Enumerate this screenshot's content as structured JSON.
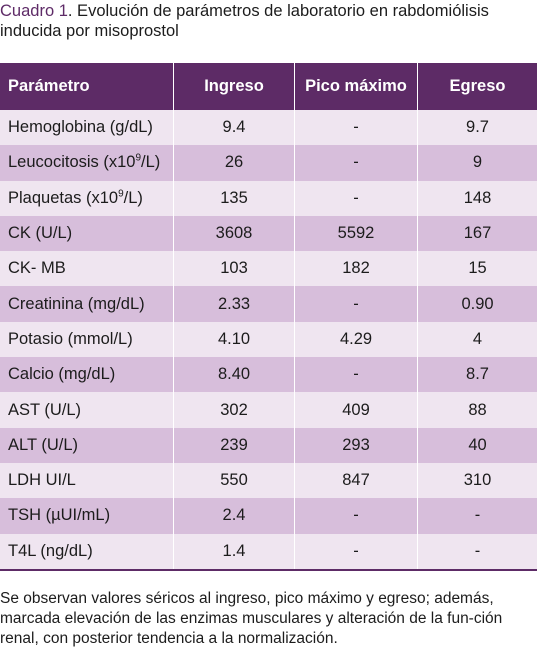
{
  "caption": {
    "label": "Cuadro 1",
    "text": ". Evolución de parámetros de laboratorio en rabdomiólisis inducida por misoprostol"
  },
  "table": {
    "headers": [
      "Parámetro",
      "Ingreso",
      "Pico máximo",
      "Egreso"
    ],
    "rows": [
      {
        "param": "Hemoglobina (g/dL)",
        "ingreso": "9.4",
        "pico": "-",
        "egreso": "9.7"
      },
      {
        "param_pre": "Leucocitosis (x10",
        "param_sup": "9",
        "param_post": "/L)",
        "ingreso": "26",
        "pico": "-",
        "egreso": "9"
      },
      {
        "param_pre": "Plaquetas (x10",
        "param_sup": "9",
        "param_post": "/L)",
        "ingreso": "135",
        "pico": "-",
        "egreso": "148"
      },
      {
        "param": "CK (U/L)",
        "ingreso": "3608",
        "pico": "5592",
        "egreso": "167"
      },
      {
        "param": "CK- MB",
        "ingreso": "103",
        "pico": "182",
        "egreso": "15"
      },
      {
        "param": "Creatinina (mg/dL)",
        "ingreso": "2.33",
        "pico": "-",
        "egreso": "0.90"
      },
      {
        "param": "Potasio (mmol/L)",
        "ingreso": "4.10",
        "pico": "4.29",
        "egreso": "4"
      },
      {
        "param": "Calcio (mg/dL)",
        "ingreso": "8.40",
        "pico": "-",
        "egreso": "8.7"
      },
      {
        "param": "AST (U/L)",
        "ingreso": "302",
        "pico": "409",
        "egreso": "88"
      },
      {
        "param": "ALT (U/L)",
        "ingreso": "239",
        "pico": "293",
        "egreso": "40"
      },
      {
        "param": "LDH UI/L",
        "ingreso": "550",
        "pico": "847",
        "egreso": "310"
      },
      {
        "param": "TSH (µUI/mL)",
        "ingreso": "2.4",
        "pico": "-",
        "egreso": "-"
      },
      {
        "param": "T4L (ng/dL)",
        "ingreso": "1.4",
        "pico": "-",
        "egreso": "-"
      }
    ]
  },
  "footnote": "Se observan valores séricos al ingreso, pico máximo y egreso; además, marcada elevación de las enzimas musculares y alteración de la fun-ción renal, con posterior tendencia a la normalización."
}
